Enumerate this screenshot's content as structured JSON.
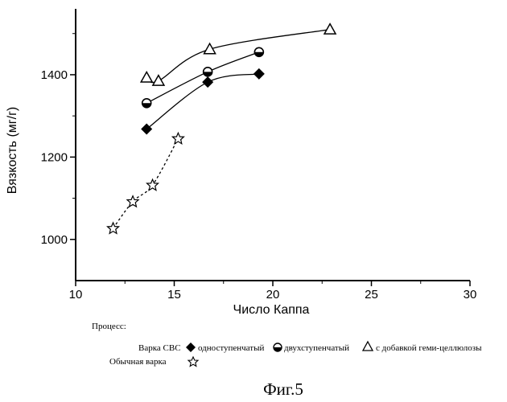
{
  "figure_caption": "Фиг.5",
  "legend": {
    "title": "Процесс:",
    "group1_label": "Варка СВС",
    "group2_label": "Обычная варка",
    "entries": [
      "одноступенчатый",
      "двухступенчатый",
      "с добавкой геми-целлюлозы",
      ""
    ]
  },
  "chart_data": {
    "type": "line",
    "xlabel": "Число Каппа",
    "ylabel": "Вязкость (мг/г)",
    "xlim": [
      10,
      30
    ],
    "ylim": [
      900,
      1560
    ],
    "xticks": [
      10,
      15,
      20,
      25,
      30
    ],
    "yticks": [
      1000,
      1200,
      1400
    ],
    "grid": false,
    "legend_position": "bottom",
    "series": [
      {
        "name": "одноступенчатый",
        "marker": "diamond",
        "line": "solid",
        "x": [
          13.6,
          16.7,
          19.3
        ],
        "y": [
          1268,
          1382,
          1402
        ]
      },
      {
        "name": "двухступенчатый",
        "marker": "circle-half",
        "line": "solid",
        "x": [
          13.6,
          16.7,
          19.3
        ],
        "y": [
          1331,
          1407,
          1455
        ]
      },
      {
        "name": "с добавкой геми-целлюлозы",
        "marker": "triangle-open",
        "line": "solid",
        "x": [
          13.6,
          14.2,
          16.8,
          22.9
        ],
        "y": [
          1393,
          1385,
          1462,
          1510
        ]
      },
      {
        "name": "",
        "marker": "star-open",
        "line": "dashed",
        "x": [
          11.9,
          12.9,
          13.9,
          15.2
        ],
        "y": [
          1027,
          1092,
          1132,
          1245
        ]
      }
    ]
  }
}
